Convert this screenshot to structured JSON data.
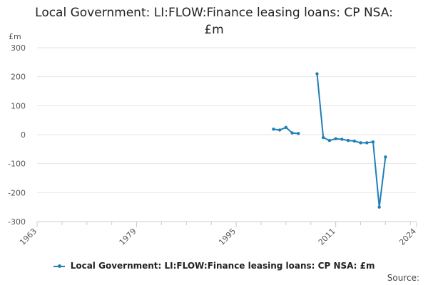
{
  "title_lines": [
    "Local Government: LI:FLOW:Finance leasing loans: CP NSA:",
    "£m"
  ],
  "unit_label": "£m",
  "legend_label": "Local Government: LI:FLOW:Finance leasing loans: CP NSA: £m",
  "source_label": "Source:",
  "colors": {
    "series": "#1f7fb7",
    "grid": "#e6e6e6",
    "axis": "#cccccc",
    "tick_text": "#555555"
  },
  "chart_data": {
    "type": "line",
    "title": "Local Government: LI:FLOW:Finance leasing loans: CP NSA: £m",
    "ylabel": "£m",
    "xlabel": "",
    "xlim": [
      1963,
      2024
    ],
    "ylim": [
      -300,
      300
    ],
    "x_ticks": [
      1963,
      1979,
      1995,
      2011,
      2024
    ],
    "y_ticks": [
      300,
      200,
      100,
      0,
      -100,
      -200,
      -300
    ],
    "grid": true,
    "legend": "bottom",
    "series": [
      {
        "name": "Local Government: LI:FLOW:Finance leasing loans: CP NSA: £m",
        "segments": [
          [
            [
              2001,
              19
            ],
            [
              2002,
              16
            ],
            [
              2003,
              25
            ],
            [
              2004,
              6
            ],
            [
              2005,
              4
            ]
          ],
          [
            [
              2008,
              210
            ],
            [
              2009,
              -10
            ],
            [
              2010,
              -20
            ],
            [
              2011,
              -14
            ],
            [
              2012,
              -16
            ],
            [
              2013,
              -20
            ],
            [
              2014,
              -22
            ],
            [
              2015,
              -28
            ],
            [
              2016,
              -28
            ],
            [
              2017,
              -25
            ],
            [
              2018,
              -250
            ],
            [
              2019,
              -77
            ]
          ]
        ]
      }
    ]
  }
}
